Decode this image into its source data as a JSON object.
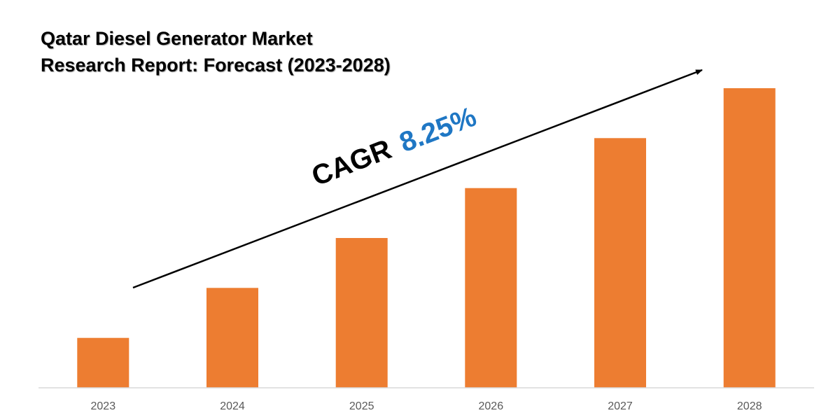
{
  "title_lines": [
    "Qatar Diesel Generator Market",
    "Research Report: Forecast (2023-2028)"
  ],
  "cagr": {
    "label": "CAGR",
    "value": "8.25%"
  },
  "colors": {
    "bar": "#ED7D31",
    "cagr_value": "#1F77C4",
    "axis": "#D9D9D9",
    "tick_text": "#595959",
    "arrow": "#000000"
  },
  "chart_data": {
    "type": "bar",
    "title": "Qatar Diesel Generator Market Research Report: Forecast (2023-2028)",
    "categories": [
      "2023",
      "2024",
      "2025",
      "2026",
      "2027",
      "2028"
    ],
    "values": [
      1.0,
      2.0,
      3.0,
      4.0,
      5.0,
      6.0
    ],
    "ylim": [
      0,
      6.4
    ],
    "xlabel": "",
    "ylabel": "",
    "grid": false,
    "legend": "none",
    "annotations": [
      "CAGR 8.25%"
    ]
  }
}
